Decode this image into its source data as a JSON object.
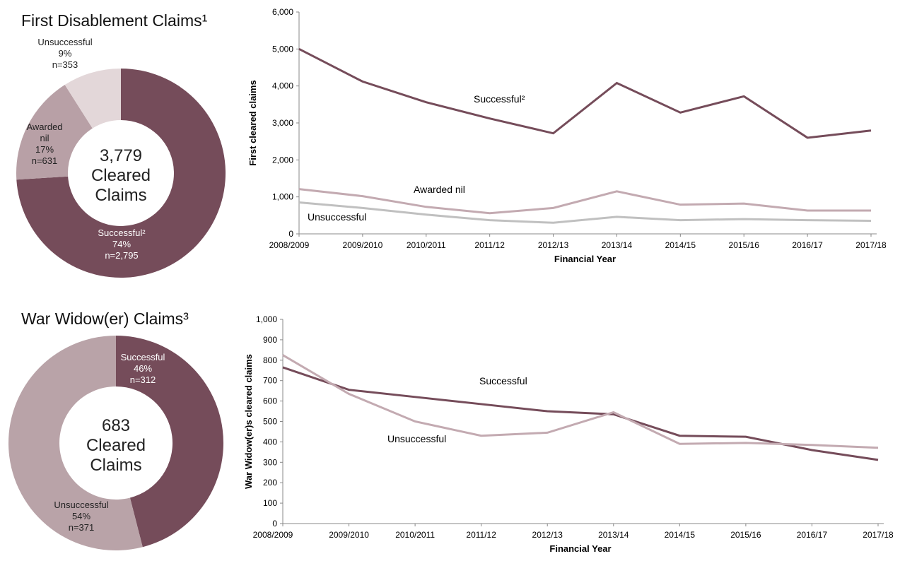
{
  "chart_data": [
    {
      "type": "donut",
      "title": "First Disablement Claims¹",
      "categories": [
        "Successful²",
        "Awarded nil",
        "Unsuccessful"
      ],
      "values": [
        74,
        17,
        9
      ],
      "value_labels": [
        "74%",
        "17%",
        "9%"
      ],
      "counts": [
        2795,
        631,
        353
      ],
      "count_labels": [
        "n=2,795",
        "n=631",
        "n=353"
      ],
      "colors": [
        "#754c5a",
        "#b8a0a6",
        "#e3d7d9"
      ],
      "total": {
        "value": 3779,
        "label": "3,779"
      },
      "center_text": [
        "Cleared",
        "Claims"
      ]
    },
    {
      "type": "line",
      "xlabel": "Financial Year",
      "ylabel": "First cleared claims",
      "categories": [
        "2008/2009",
        "2009/2010",
        "2010/2011",
        "2011/12",
        "2012/13",
        "2013/14",
        "2014/15",
        "2015/16",
        "2016/17",
        "2017/18"
      ],
      "ylim": [
        0,
        6000
      ],
      "yticks": [
        0,
        {
          "value": 1000,
          "label": "1,000"
        },
        {
          "value": 2000,
          "label": "2,000"
        },
        {
          "value": 3000,
          "label": "3,000"
        },
        {
          "value": 4000,
          "label": "4,000"
        },
        {
          "value": 5000,
          "label": "5,000"
        },
        {
          "value": 6000,
          "label": "6,000"
        }
      ],
      "series": [
        {
          "name": "Successful²",
          "color": "#754c5a",
          "values": [
            5000,
            4120,
            3560,
            3120,
            2720,
            4080,
            3280,
            3720,
            2600,
            2795
          ]
        },
        {
          "name": "Awarded nil",
          "color": "#c3aab1",
          "values": [
            1210,
            1020,
            730,
            560,
            700,
            1150,
            790,
            820,
            630,
            631
          ]
        },
        {
          "name": "Unsuccessful",
          "color": "#c0c0c0",
          "values": [
            850,
            700,
            520,
            370,
            300,
            460,
            370,
            400,
            370,
            353
          ]
        }
      ]
    },
    {
      "type": "donut",
      "title": "War Widow(er) Claims³",
      "categories": [
        "Successful",
        "Unsuccessful"
      ],
      "values": [
        46,
        54
      ],
      "value_labels": [
        "46%",
        "54%"
      ],
      "counts": [
        312,
        371
      ],
      "count_labels": [
        "n=312",
        "n=371"
      ],
      "colors": [
        "#754c5a",
        "#b9a3a8"
      ],
      "total": 683,
      "center_text": [
        "Cleared",
        "Claims"
      ]
    },
    {
      "type": "line",
      "xlabel": "Financial Year",
      "ylabel": "War Widow(er)s cleared claims",
      "categories": [
        "2008/2009",
        "2009/2010",
        "2010/2011",
        "2011/12",
        "2012/13",
        "2013/14",
        "2014/15",
        "2015/16",
        "2016/17",
        "2017/18"
      ],
      "ylim": [
        0,
        1000
      ],
      "yticks": [
        0,
        100,
        200,
        300,
        400,
        500,
        600,
        700,
        800,
        900,
        {
          "value": 1000,
          "label": "1,000"
        }
      ],
      "series": [
        {
          "name": "Successful",
          "color": "#754c5a",
          "values": [
            765,
            655,
            620,
            585,
            550,
            535,
            430,
            425,
            360,
            312
          ]
        },
        {
          "name": "Unsuccessful",
          "color": "#c3aab1",
          "values": [
            825,
            635,
            500,
            430,
            445,
            545,
            390,
            395,
            385,
            371
          ]
        }
      ]
    }
  ]
}
